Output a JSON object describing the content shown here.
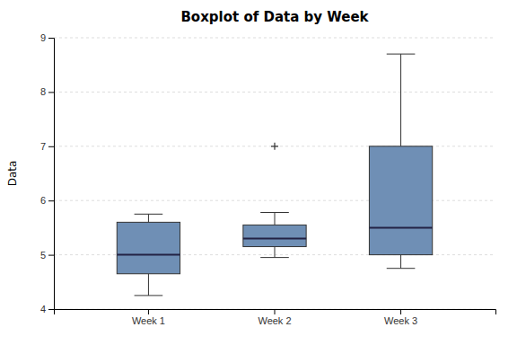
{
  "chart_data": {
    "type": "box",
    "title": "Boxplot of Data by Week",
    "ylabel": "Data",
    "categories": [
      "Week 1",
      "Week 2",
      "Week 3"
    ],
    "boxes": [
      {
        "med": 5.0,
        "q1": 4.65,
        "q3": 5.6,
        "whislo": 4.25,
        "whishi": 5.75,
        "fliers": []
      },
      {
        "med": 5.3,
        "q1": 5.15,
        "q3": 5.55,
        "whislo": 4.95,
        "whishi": 5.78,
        "fliers": [
          7.0
        ]
      },
      {
        "med": 5.5,
        "q1": 5.0,
        "q3": 7.0,
        "whislo": 4.75,
        "whishi": 8.7,
        "fliers": []
      }
    ],
    "color": "#6F8FB5",
    "ylim": [
      4.0,
      9.0
    ],
    "yticks": [
      4,
      5,
      6,
      7,
      8,
      9
    ],
    "grid": true
  }
}
